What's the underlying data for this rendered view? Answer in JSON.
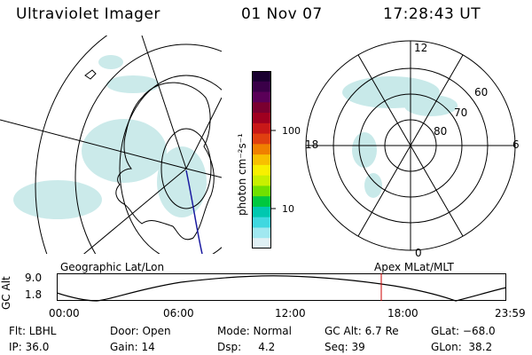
{
  "header": {
    "title": "Ultraviolet Imager",
    "date": "01 Nov 07",
    "time": "17:28:43 UT"
  },
  "colorbar": {
    "unit_label": "photon cm⁻²s⁻¹",
    "ticks": [
      "100",
      "10"
    ],
    "colors": [
      "#1a0030",
      "#3a0048",
      "#5a0058",
      "#7a0030",
      "#a00020",
      "#c81818",
      "#e04010",
      "#f08000",
      "#f8c000",
      "#f8f000",
      "#c8f000",
      "#70e000",
      "#00c840",
      "#00c8b0",
      "#40d8e0",
      "#a0e8f0",
      "#e0f0f4"
    ]
  },
  "geo_map": {
    "label": "Geographic Lat/Lon"
  },
  "polar_plot": {
    "label": "Apex MLat/MLT",
    "mlt_labels": {
      "top": "12",
      "left": "18",
      "right": "6",
      "bottom": "0"
    },
    "lat_labels": [
      "60",
      "70",
      "80"
    ]
  },
  "altitude_plot": {
    "ylabel": "GC Alt",
    "yticks": [
      "9.0",
      "1.8"
    ],
    "xticks": [
      "00:00",
      "06:00",
      "12:00",
      "18:00",
      "23:59"
    ],
    "marker_color": "#cc0000"
  },
  "info": {
    "flt": "Flt: LBHL",
    "ip": "IP: 36.0",
    "door": "Door: Open",
    "gain": "Gain: 14",
    "mode": "Mode: Normal",
    "dsp": "Dsp:     4.2",
    "gcalt": "GC Alt: 6.7 Re",
    "seq": "Seq: 39",
    "glat": "GLat: −68.0",
    "glon": "GLon:  38.2"
  }
}
